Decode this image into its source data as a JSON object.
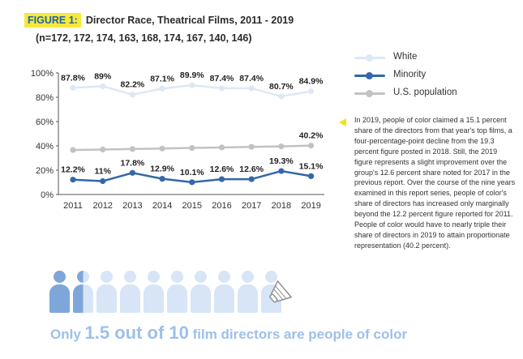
{
  "figure": {
    "label": "FIGURE 1:",
    "title": "Director Race, Theatrical Films,  2011 - 2019",
    "subtitle": "(n=172, 172, 174, 163, 168, 174, 167, 140, 146)"
  },
  "chart_data": {
    "type": "line",
    "x": [
      "2011",
      "2012",
      "2013",
      "2014",
      "2015",
      "2016",
      "2017",
      "2018",
      "2019"
    ],
    "yticks": [
      "0%",
      "20%",
      "40%",
      "60%",
      "80%",
      "100%"
    ],
    "ylim": [
      0,
      100
    ],
    "grid": false,
    "legend_position": "right",
    "series": [
      {
        "name": "White",
        "values": [
          87.8,
          89,
          82.2,
          87.1,
          89.9,
          87.4,
          87.4,
          80.7,
          84.9
        ],
        "labels": [
          "87.8%",
          "89%",
          "82.2%",
          "87.1%",
          "89.9%",
          "87.4%",
          "87.4%",
          "80.7%",
          "84.9%"
        ],
        "color": "#dce8f6"
      },
      {
        "name": "Minority",
        "values": [
          12.2,
          11,
          17.8,
          12.9,
          10.1,
          12.6,
          12.6,
          19.3,
          15.1
        ],
        "labels": [
          "12.2%",
          "11%",
          "17.8%",
          "12.9%",
          "10.1%",
          "12.6%",
          "12.6%",
          "19.3%",
          "15.1%"
        ],
        "color": "#3467ab"
      },
      {
        "name": "U.S. population",
        "values": [
          36.6,
          37,
          37.4,
          37.8,
          38.3,
          38.7,
          39.2,
          39.6,
          40.2
        ],
        "labels": [
          "",
          "",
          "",
          "",
          "",
          "",
          "",
          "",
          "40.2%"
        ],
        "color": "#c2c2c2"
      }
    ]
  },
  "callout": {
    "color": "#f3e21a",
    "text": "In 2019, people of color claimed a 15.1 percent share of the directors from that year's top films, a four-percentage-point decline from the 19.3 percent figure posted in 2018.  Still, the 2019 figure represents a slight improvement over the group's 12.6 percent share noted for 2017 in the previous report.  Over the course of the nine years examined in this report series, people of color's share of directors has increased only marginally beyond the 12.2 percent figure reported for 2011.  People of color would have to nearly triple their share of directors in 2019 to attain proportionate representation (40.2 percent)."
  },
  "infographic": {
    "people_total": 10,
    "people_highlighted": 1.5,
    "highlight_color": "#7fa6d9",
    "base_color": "#d7e5f6",
    "megaphone_icon": "megaphone-icon",
    "tagline_parts": [
      "Only ",
      "1.5 out of 10",
      " film directors are people of color"
    ]
  }
}
